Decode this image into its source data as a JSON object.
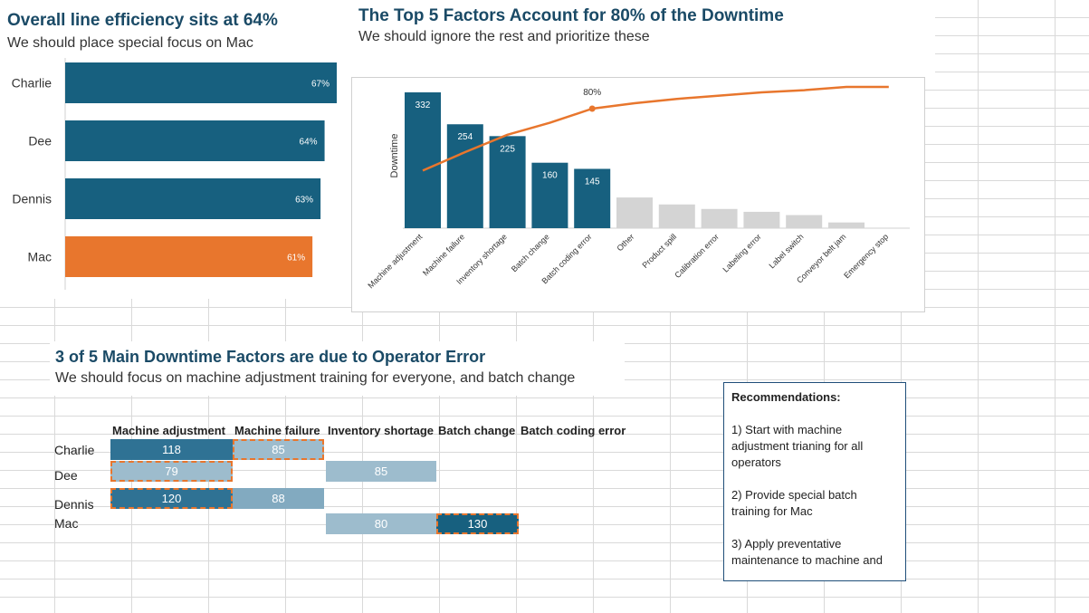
{
  "colors": {
    "navy": "#17607f",
    "orange": "#e8762d",
    "gray": "#d4d4d4",
    "title": "#1a4a66"
  },
  "efficiency": {
    "title": "Overall line efficiency sits at 64%",
    "subtitle": "We should place special focus on Mac"
  },
  "pareto": {
    "title": "The Top 5  Factors Account for 80% of the Downtime",
    "subtitle": "We should ignore the rest and prioritize these"
  },
  "heatmap": {
    "title": "3 of 5 Main Downtime Factors are due to Operator Error",
    "subtitle": "We should focus on machine adjustment training for everyone, and batch change"
  },
  "recommendations": {
    "heading": "Recommendations:",
    "items": [
      "1) Start with machine adjustment trianing for all operators",
      "2) Provide special batch training for Mac",
      "3) Apply preventative maintenance to machine and"
    ]
  },
  "chart_data": [
    {
      "type": "bar",
      "orientation": "horizontal",
      "categories": [
        "Charlie",
        "Dee",
        "Dennis",
        "Mac"
      ],
      "values": [
        67,
        64,
        63,
        61
      ],
      "value_labels": [
        "67%",
        "64%",
        "63%",
        "61%"
      ],
      "highlight": "Mac",
      "xlim": [
        0,
        67
      ]
    },
    {
      "type": "bar",
      "ylabel": "Downtime",
      "categories": [
        "Machine adjustment",
        "Machine failure",
        "Inventory shortage",
        "Batch change",
        "Batch coding error",
        "Other",
        "Product spill",
        "Calibration error",
        "Labeling error",
        "Label switch",
        "Conveyor belt jam",
        "Emergency stop"
      ],
      "values": [
        332,
        254,
        225,
        160,
        145,
        75,
        58,
        47,
        40,
        32,
        14,
        0
      ],
      "labeled_count": 5,
      "cumulative_percent": [
        23,
        40,
        56,
        67,
        80,
        85,
        89,
        92,
        95,
        97,
        100,
        100
      ],
      "cumulative_label": "80%",
      "cumulative_marker_index": 4
    },
    {
      "type": "heatmap",
      "columns": [
        "Machine adjustment",
        "Machine failure",
        "Inventory shortage",
        "Batch change",
        "Batch coding error"
      ],
      "rows": [
        "Charlie",
        "Dee",
        "Dennis",
        "Mac"
      ],
      "values": [
        [
          118,
          85,
          null,
          null,
          null
        ],
        [
          79,
          null,
          85,
          null,
          null
        ],
        [
          120,
          88,
          null,
          null,
          null
        ],
        [
          null,
          null,
          80,
          130,
          null
        ]
      ],
      "highlighted": [
        [
          0,
          1
        ],
        [
          0,
          2
        ],
        [
          1,
          0
        ],
        [
          2,
          0
        ],
        [
          3,
          3
        ]
      ]
    }
  ]
}
